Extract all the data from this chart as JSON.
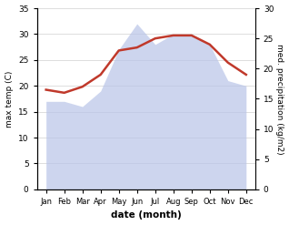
{
  "months": [
    "Jan",
    "Feb",
    "Mar",
    "Apr",
    "May",
    "Jun",
    "Jul",
    "Aug",
    "Sep",
    "Oct",
    "Nov",
    "Dec"
  ],
  "x": [
    0,
    1,
    2,
    3,
    4,
    5,
    6,
    7,
    8,
    9,
    10,
    11
  ],
  "temperature": [
    17,
    17,
    16,
    19,
    27,
    32,
    28,
    30,
    30,
    28,
    21,
    20
  ],
  "precipitation": [
    16.5,
    16.0,
    17.0,
    19.0,
    23.0,
    23.5,
    25.0,
    25.5,
    25.5,
    24.0,
    21.0,
    19.0
  ],
  "temp_color_fill": "#b8c4e8",
  "precip_color": "#c0392b",
  "temp_ylim": [
    0,
    35
  ],
  "precip_ylim": [
    0,
    30
  ],
  "temp_yticks": [
    0,
    5,
    10,
    15,
    20,
    25,
    30,
    35
  ],
  "precip_yticks": [
    0,
    5,
    10,
    15,
    20,
    25,
    30
  ],
  "xlabel": "date (month)",
  "ylabel_left": "max temp (C)",
  "ylabel_right": "med. precipitation (kg/m2)",
  "bg_color": "#ffffff",
  "grid_color": "#d0d0d0",
  "xlim": [
    -0.5,
    11.5
  ]
}
